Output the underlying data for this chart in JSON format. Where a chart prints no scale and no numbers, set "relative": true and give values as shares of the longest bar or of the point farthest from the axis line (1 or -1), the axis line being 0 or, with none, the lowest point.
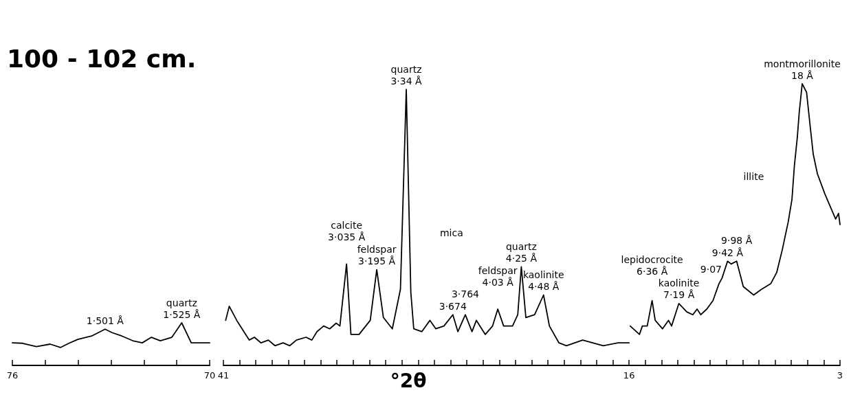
{
  "chart_data": [
    {
      "type": "line",
      "title": "100 - 102 cm.",
      "relative": true,
      "tick_labels": "x",
      "color": "#000000",
      "xlim": [
        76,
        70
      ],
      "xticks": [
        76,
        {
          "value": 75,
          "label": null
        },
        {
          "value": 74,
          "label": null
        },
        {
          "value": 73,
          "label": null
        },
        {
          "value": 72,
          "label": null
        },
        {
          "value": 71,
          "label": null
        },
        70
      ],
      "x": [
        76,
        75.69,
        75.27,
        74.85,
        74.54,
        74.28,
        74.01,
        73.59,
        73.18,
        72.97,
        72.67,
        72.34,
        72.05,
        71.77,
        71.5,
        71.15,
        70.85,
        70.56,
        70
      ],
      "values": [
        0.53,
        0.52,
        0.44,
        0.5,
        0.42,
        0.52,
        0.61,
        0.69,
        0.85,
        0.77,
        0.69,
        0.58,
        0.53,
        0.66,
        0.58,
        0.66,
        1.0,
        0.53,
        0.53
      ],
      "annotations": [
        {
          "text": "1·501 Å",
          "x": 73.18,
          "y": 0.85
        },
        {
          "text": "quartz\n1·525 Å",
          "x": 70.85,
          "y": 1.0
        }
      ]
    },
    {
      "type": "line",
      "xlabel": "°2θ",
      "relative": true,
      "tick_labels": "x",
      "xlim": [
        41,
        3
      ],
      "xticks": [
        41,
        {
          "value": 40,
          "label": null
        },
        {
          "value": 39,
          "label": null
        },
        {
          "value": 38,
          "label": null
        },
        {
          "value": 37,
          "label": null
        },
        {
          "value": 36,
          "label": null
        },
        {
          "value": 35,
          "label": null
        },
        {
          "value": 34,
          "label": null
        },
        {
          "value": 33,
          "label": null
        },
        {
          "value": 32,
          "label": null
        },
        {
          "value": 31,
          "label": null
        },
        {
          "value": 30,
          "label": null
        },
        {
          "value": 29,
          "label": null
        },
        {
          "value": 28,
          "label": null
        },
        {
          "value": 27,
          "label": null
        },
        {
          "value": 26,
          "label": null
        },
        {
          "value": 25,
          "label": null
        },
        {
          "value": 24,
          "label": null
        },
        {
          "value": 23,
          "label": null
        },
        {
          "value": 22,
          "label": null
        },
        {
          "value": 21,
          "label": null
        },
        {
          "value": 20,
          "label": null
        },
        {
          "value": 19,
          "label": null
        },
        {
          "value": 18,
          "label": null
        },
        {
          "value": 17,
          "label": null
        },
        16,
        {
          "value": 15,
          "label": null
        },
        {
          "value": 14,
          "label": null
        },
        {
          "value": 13,
          "label": null
        },
        {
          "value": 12,
          "label": null
        },
        {
          "value": 11,
          "label": null
        },
        {
          "value": 10,
          "label": null
        },
        {
          "value": 9,
          "label": null
        },
        {
          "value": 8,
          "label": null
        },
        {
          "value": 7,
          "label": null
        },
        {
          "value": 6,
          "label": null
        },
        {
          "value": 5,
          "label": null
        },
        {
          "value": 4,
          "label": null
        },
        3
      ],
      "series": [
        {
          "color": "#000000",
          "x": [
            40.86,
            40.64,
            40.18,
            39.41,
            39.09,
            38.68,
            38.23,
            37.82,
            37.32,
            36.91,
            36.5,
            35.91,
            35.55,
            35.23,
            34.82,
            34.45,
            34.05,
            33.82,
            33.41,
            33.14,
            32.64,
            31.95,
            31.55,
            31.14,
            30.59,
            30.09,
            29.73,
            29.45,
            29.27,
            28.77,
            28.27,
            27.91,
            27.41,
            26.86,
            26.55,
            26.09,
            25.68,
            25.41,
            24.86,
            24.41,
            24.09,
            23.73,
            23.18,
            22.86,
            22.64,
            22.36,
            21.82,
            21.27,
            20.91,
            20.32,
            19.86,
            18.86,
            17.59,
            16.68,
            16
          ],
          "values": [
            0.16,
            0.21,
            0.16,
            0.09,
            0.1,
            0.08,
            0.09,
            0.07,
            0.08,
            0.07,
            0.09,
            0.1,
            0.09,
            0.12,
            0.14,
            0.13,
            0.15,
            0.14,
            0.36,
            0.11,
            0.11,
            0.16,
            0.34,
            0.17,
            0.13,
            0.27,
            0.98,
            0.26,
            0.13,
            0.12,
            0.16,
            0.13,
            0.14,
            0.18,
            0.12,
            0.18,
            0.12,
            0.16,
            0.11,
            0.14,
            0.2,
            0.14,
            0.14,
            0.18,
            0.35,
            0.17,
            0.18,
            0.25,
            0.14,
            0.08,
            0.07,
            0.09,
            0.07,
            0.08,
            0.08
          ]
        },
        {
          "color": "#000000",
          "x": [
            15.93,
            15.36,
            15.18,
            14.88,
            14.58,
            14.39,
            13.94,
            13.57,
            13.38,
            12.93,
            12.44,
            12.07,
            11.81,
            11.58,
            11.21,
            10.83,
            10.46,
            10.27,
            9.93,
            9.71,
            9.37,
            8.96,
            8.32,
            7.84,
            7.27,
            6.9,
            6.56,
            6.19,
            5.96,
            5.81,
            5.63,
            5.51,
            5.33,
            5.06,
            4.84,
            4.65,
            4.39,
            3.94,
            3.57,
            3.27,
            3.09,
            3
          ],
          "values": [
            0.14,
            0.11,
            0.14,
            0.14,
            0.23,
            0.16,
            0.13,
            0.16,
            0.14,
            0.22,
            0.19,
            0.18,
            0.2,
            0.18,
            0.2,
            0.23,
            0.29,
            0.31,
            0.37,
            0.36,
            0.37,
            0.28,
            0.25,
            0.27,
            0.29,
            0.33,
            0.41,
            0.51,
            0.59,
            0.71,
            0.81,
            0.9,
            1.0,
            0.97,
            0.85,
            0.75,
            0.68,
            0.61,
            0.56,
            0.52,
            0.54,
            0.5
          ]
        }
      ],
      "annotations": [
        {
          "text": "calcite\n3·035 Å",
          "x": 33.41,
          "y": 0.36
        },
        {
          "text": "feldspar\n3·195 Å",
          "x": 31.55,
          "y": 0.34
        },
        {
          "text": "quartz\n3·34 Å",
          "x": 29.73,
          "y": 0.98
        },
        {
          "text": "3·674",
          "x": 26.86,
          "y": 0.18
        },
        {
          "text": "3·764",
          "x": 26.09,
          "y": 0.18
        },
        "mica",
        {
          "text": "feldspar\n4·03 Å",
          "x": 24.09,
          "y": 0.2
        },
        {
          "text": "quartz\n4·25 Å",
          "x": 22.64,
          "y": 0.35
        },
        {
          "text": "kaolinite\n4·48 Å",
          "x": 21.27,
          "y": 0.25
        },
        {
          "text": "lepidocrocite\n6·36 Å",
          "x": 14.58,
          "y": 0.23
        },
        {
          "text": "kaolinite\n7·19 Å",
          "x": 12.93,
          "y": 0.22
        },
        {
          "text": "9·07",
          "x": 10.27,
          "y": 0.31
        },
        {
          "text": "9·42 Å",
          "x": 9.93,
          "y": 0.37
        },
        {
          "text": "9·98 Å",
          "x": 9.37,
          "y": 0.37
        },
        "illite",
        {
          "text": "montmorillonite\n18 Å",
          "x": 5.33,
          "y": 1.0
        }
      ]
    }
  ]
}
